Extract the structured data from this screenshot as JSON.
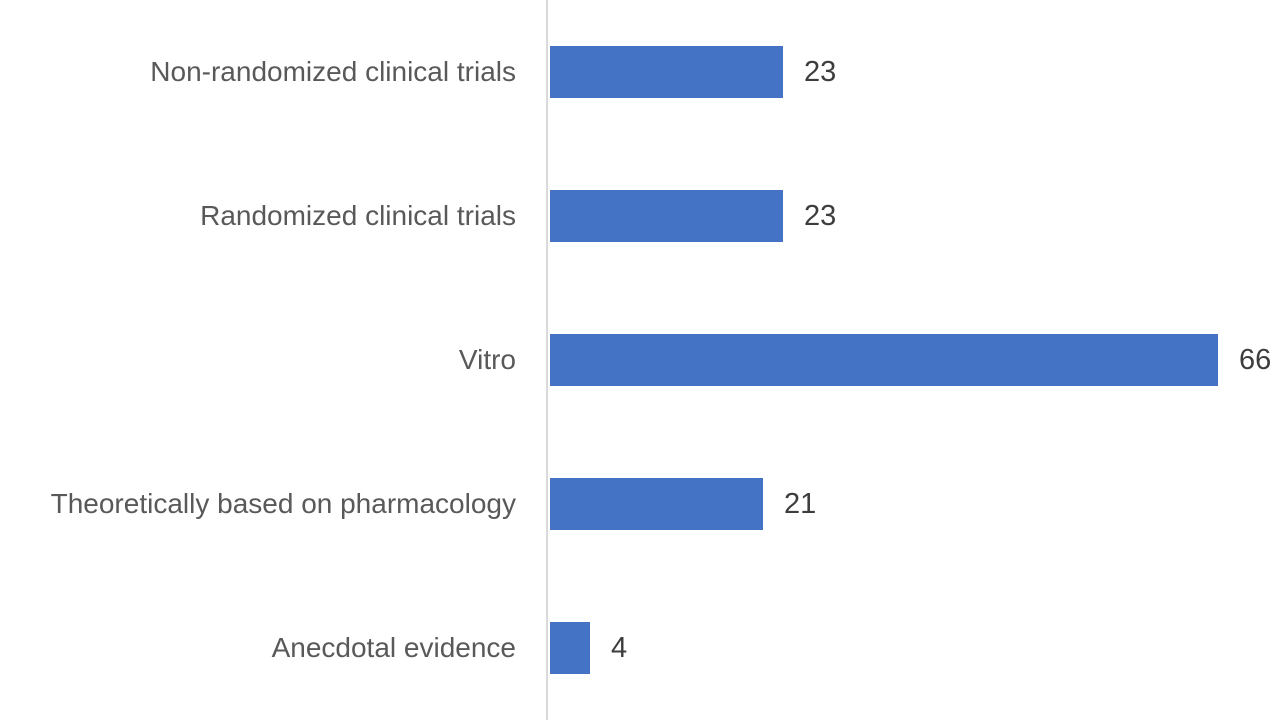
{
  "chart_data": {
    "type": "bar",
    "orientation": "horizontal",
    "title": "",
    "xlabel": "",
    "ylabel": "",
    "categories": [
      "Non-randomized clinical trials",
      "Randomized clinical trials",
      "Vitro",
      "Theoretically based on pharmacology",
      "Anecdotal evidence"
    ],
    "values": [
      23,
      23,
      66,
      21,
      4
    ],
    "data_labels": [
      "23",
      "23",
      "66",
      "21",
      "4"
    ],
    "xlim": [
      0,
      66
    ],
    "grid": false,
    "legend": false,
    "layout_hints": {
      "bars_start_at_axis": true,
      "value_labels_outside_end": true,
      "category_labels_right_aligned": true
    },
    "colors": {
      "bar": "#4472C4",
      "axis_line": "#D9D9D9",
      "category_label": "#595959",
      "value_label": "#3D3D3D",
      "background": "#FFFFFF"
    }
  }
}
